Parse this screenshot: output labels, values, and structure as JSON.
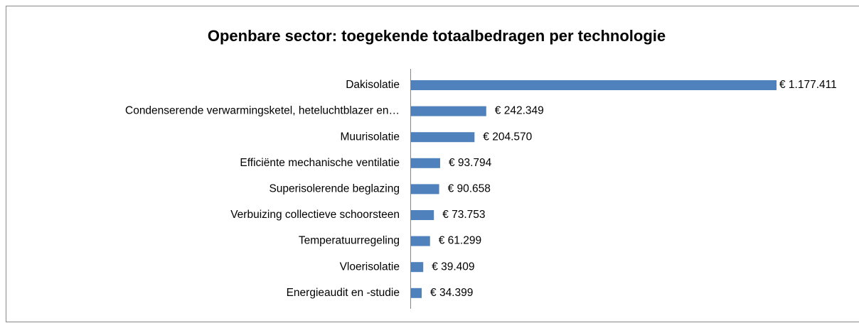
{
  "chart_data": {
    "type": "bar",
    "orientation": "horizontal",
    "title": "Openbare sector: toegekende totaalbedragen per technologie",
    "categories": [
      "Dakisolatie",
      "Condenserende verwarmingsketel, heteluchtblazer en…",
      "Muurisolatie",
      "Efficiënte mechanische ventilatie",
      "Superisolerende beglazing",
      "Verbuizing collectieve schoorsteen",
      "Temperatuurregeling",
      "Vloerisolatie",
      "Energieaudit en -studie"
    ],
    "values": [
      1177411,
      242349,
      204570,
      93794,
      90658,
      73753,
      61299,
      39409,
      34399
    ],
    "value_labels": [
      "€ 1.177.411",
      "€ 242.349",
      "€ 204.570",
      "€ 93.794",
      "€ 90.658",
      "€ 73.753",
      "€ 61.299",
      "€ 39.409",
      "€ 34.399"
    ],
    "color": "#4f81bd"
  }
}
